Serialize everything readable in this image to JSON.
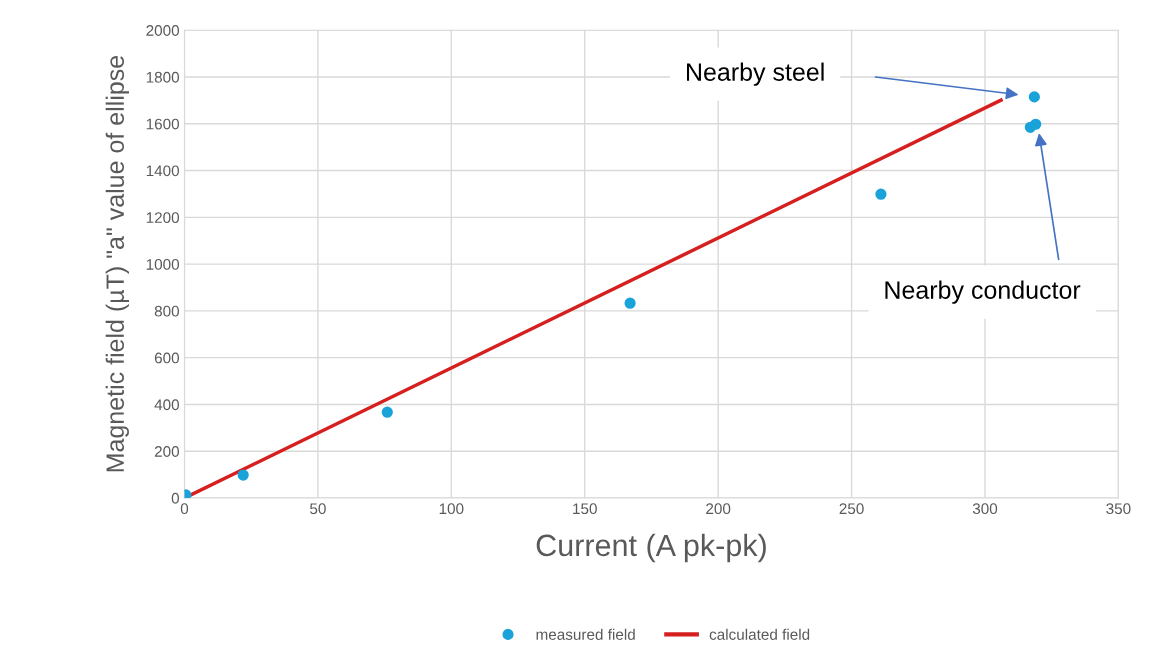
{
  "chart_data": {
    "type": "scatter",
    "xlabel": "Current (A pk-pk)",
    "ylabel": "Magnetic field (µT) \"a\" value of ellipse",
    "series": [
      {
        "name": "measured field",
        "color": "#1aa3d9",
        "marker": "circle",
        "x": [
          0.5,
          22,
          76,
          167,
          261,
          318.5,
          317,
          319
        ],
        "values": [
          13,
          98,
          367,
          833,
          1299,
          1715,
          1585,
          1598
        ]
      },
      {
        "name": "calculated field",
        "type": "line",
        "color": "#d61f1f",
        "marker": "none",
        "line_style": "solid",
        "x": [
          0,
          306
        ],
        "values": [
          0,
          1701
        ]
      }
    ],
    "xlim": [
      0,
      350
    ],
    "xticks": [
      0,
      50,
      100,
      150,
      200,
      250,
      300,
      350
    ],
    "ylim": [
      0,
      2000
    ],
    "yticks": [
      0,
      200,
      400,
      600,
      800,
      1000,
      1200,
      1400,
      1600,
      1800,
      2000
    ],
    "grid": true,
    "legend": "bottom",
    "annotations": [
      "Nearby steel",
      "Nearby conductor"
    ]
  }
}
